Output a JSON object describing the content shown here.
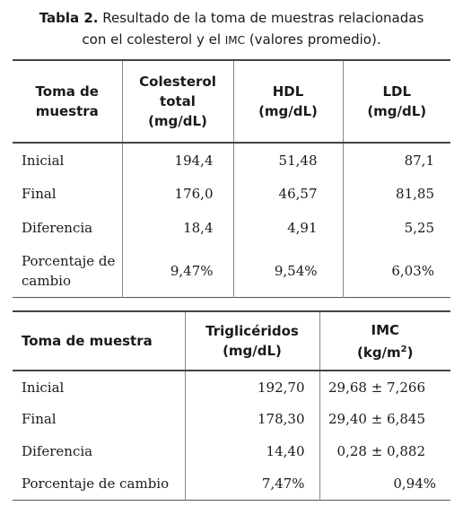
{
  "caption": {
    "label": "Tabla 2.",
    "text_line1": " Resultado de la toma de muestras relacionadas",
    "text_line2_a": "con el colesterol y el ",
    "text_line2_sc": "IMC",
    "text_line2_b": " (valores promedio)."
  },
  "table1": {
    "headers": {
      "col0": "Toma de muestra",
      "col1": "Colesterol total (mg/dL)",
      "col2": "HDL (mg/dL)",
      "col3": "LDL (mg/dL)"
    },
    "rows": [
      {
        "label": "Inicial",
        "colesterol": "194,4",
        "hdl": "51,48",
        "ldl": "87,1"
      },
      {
        "label": "Final",
        "colesterol": "176,0",
        "hdl": "46,57",
        "ldl": "81,85"
      },
      {
        "label": "Diferencia",
        "colesterol": "18,4",
        "hdl": "4,91",
        "ldl": "5,25"
      },
      {
        "label": "Porcentaje de cambio",
        "colesterol": "9,47%",
        "hdl": "9,54%",
        "ldl": "6,03%"
      }
    ]
  },
  "table2": {
    "headers": {
      "col0": "Toma de muestra",
      "col1": "Triglicéridos (mg/dL)",
      "col2_main": "IMC",
      "col2_unit": "(kg/m",
      "col2_sup": "2",
      "col2_close": ")"
    },
    "rows": [
      {
        "label": "Inicial",
        "trig": "192,70",
        "imc": "29,68 ± 7,266"
      },
      {
        "label": "Final",
        "trig": "178,30",
        "imc": "29,40 ± 6,845"
      },
      {
        "label": "Diferencia",
        "trig": "14,40",
        "imc": "0,28 ± 0,882"
      },
      {
        "label": "Porcentaje de cambio",
        "trig": "7,47%",
        "imc": "0,94%"
      }
    ]
  }
}
